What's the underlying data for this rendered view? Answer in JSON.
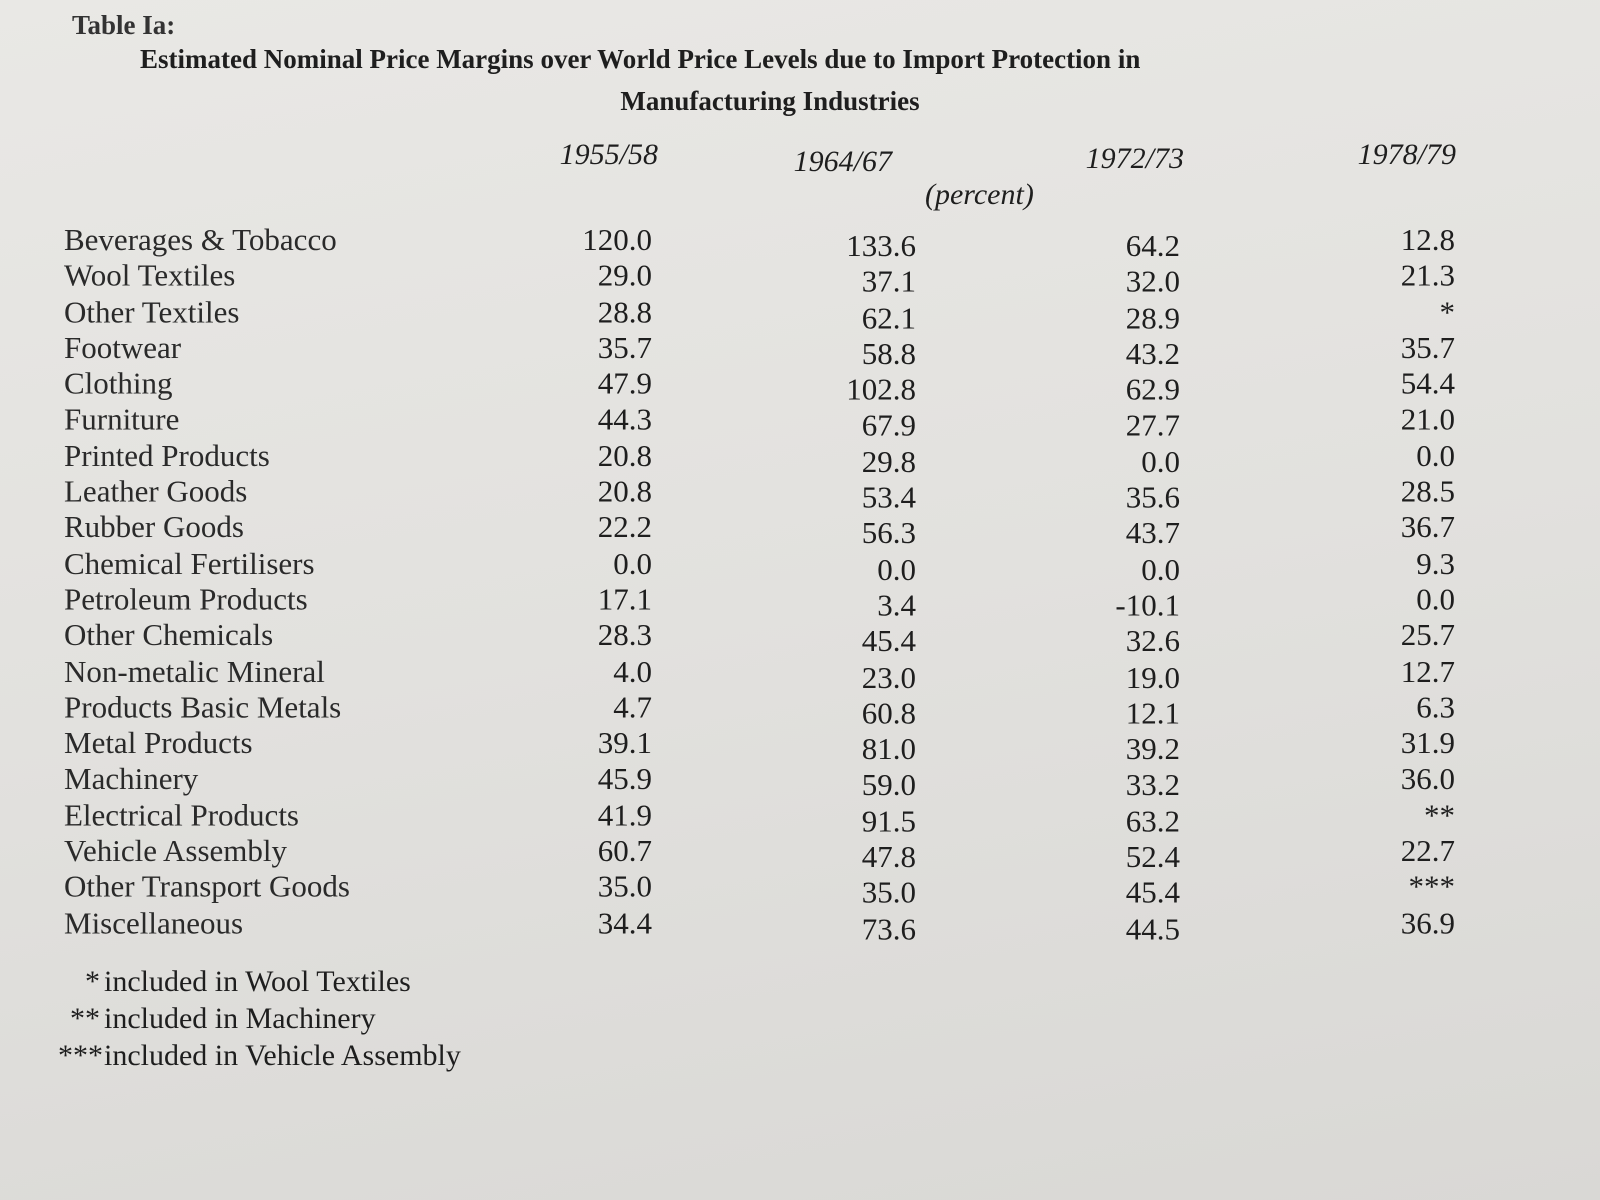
{
  "table_label": "Table Ia:",
  "title_line1": "Estimated Nominal Price Margins over World Price Levels due to Import Protection in",
  "title_line2": "Manufacturing Industries",
  "columns": [
    "1955/58",
    "1964/67",
    "1972/73",
    "1978/79"
  ],
  "unit": "(percent)",
  "rows": [
    {
      "label": "Beverages & Tobacco",
      "values": [
        "120.0",
        "133.6",
        "64.2",
        "12.8"
      ]
    },
    {
      "label": "Wool Textiles",
      "values": [
        "29.0",
        "37.1",
        "32.0",
        "21.3"
      ]
    },
    {
      "label": "Other Textiles",
      "values": [
        "28.8",
        "62.1",
        "28.9",
        "*"
      ]
    },
    {
      "label": "Footwear",
      "values": [
        "35.7",
        "58.8",
        "43.2",
        "35.7"
      ]
    },
    {
      "label": "Clothing",
      "values": [
        "47.9",
        "102.8",
        "62.9",
        "54.4"
      ]
    },
    {
      "label": "Furniture",
      "values": [
        "44.3",
        "67.9",
        "27.7",
        "21.0"
      ]
    },
    {
      "label": "Printed Products",
      "values": [
        "20.8",
        "29.8",
        "0.0",
        "0.0"
      ]
    },
    {
      "label": "Leather Goods",
      "values": [
        "20.8",
        "53.4",
        "35.6",
        "28.5"
      ]
    },
    {
      "label": "Rubber Goods",
      "values": [
        "22.2",
        "56.3",
        "43.7",
        "36.7"
      ]
    },
    {
      "label": "Chemical Fertilisers",
      "values": [
        "0.0",
        "0.0",
        "0.0",
        "9.3"
      ]
    },
    {
      "label": "Petroleum Products",
      "values": [
        "17.1",
        "3.4",
        "-10.1",
        "0.0"
      ]
    },
    {
      "label": "Other Chemicals",
      "values": [
        "28.3",
        "45.4",
        "32.6",
        "25.7"
      ]
    },
    {
      "label": "Non-metalic Mineral",
      "values": [
        "4.0",
        "23.0",
        "19.0",
        "12.7"
      ]
    },
    {
      "label": "Products Basic Metals",
      "values": [
        "4.7",
        "60.8",
        "12.1",
        "6.3"
      ]
    },
    {
      "label": "Metal Products",
      "values": [
        "39.1",
        "81.0",
        "39.2",
        "31.9"
      ]
    },
    {
      "label": "Machinery",
      "values": [
        "45.9",
        "59.0",
        "33.2",
        "36.0"
      ]
    },
    {
      "label": "Electrical Products",
      "values": [
        "41.9",
        "91.5",
        "63.2",
        "**"
      ]
    },
    {
      "label": "Vehicle Assembly",
      "values": [
        "60.7",
        "47.8",
        "52.4",
        "22.7"
      ]
    },
    {
      "label": "Other Transport Goods",
      "values": [
        "35.0",
        "35.0",
        "45.4",
        "***"
      ]
    },
    {
      "label": "Miscellaneous",
      "values": [
        "34.4",
        "73.6",
        "44.5",
        "36.9"
      ]
    }
  ],
  "footnotes": [
    {
      "mark": "*",
      "text": "included in Wool Textiles"
    },
    {
      "mark": "**",
      "text": "included in Machinery"
    },
    {
      "mark": "***",
      "text": "included in Vehicle Assembly"
    }
  ]
}
